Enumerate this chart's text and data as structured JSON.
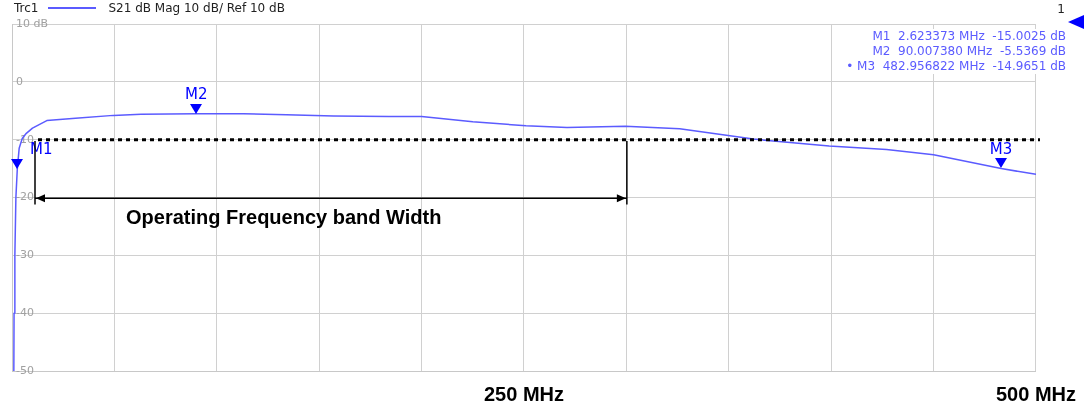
{
  "chart_data": {
    "type": "line",
    "legend_title": "Trc1",
    "legend": "top left",
    "x": [
      0.9,
      1.0,
      1.4,
      1.9,
      2.6,
      3.5,
      5,
      7,
      10,
      17,
      31,
      49.5,
      63,
      90,
      113,
      134,
      157,
      184,
      200,
      225,
      251,
      271,
      299.5,
      326,
      362,
      399,
      427,
      450,
      483,
      500
    ],
    "series": [
      {
        "name": "S21  dB Mag  10 dB/ Ref 10 dB",
        "color": "#5b5bff",
        "values": [
          -50,
          -40,
          -30,
          -20,
          -15.0,
          -11.5,
          -9.8,
          -8.9,
          -8.0,
          -6.7,
          -6.3,
          -5.8,
          -5.6,
          -5.5,
          -5.5,
          -5.7,
          -5.9,
          -6.0,
          -6.0,
          -6.9,
          -7.6,
          -7.9,
          -7.7,
          -8.1,
          -9.9,
          -11.1,
          -11.7,
          -12.6,
          -15.0,
          -16.0
        ]
      }
    ],
    "xlim": [
      0,
      500
    ],
    "xticks": [
      {
        "value": 0,
        "label": null
      },
      {
        "value": 50,
        "label": null
      },
      {
        "value": 100,
        "label": null
      },
      {
        "value": 150,
        "label": null
      },
      {
        "value": 200,
        "label": null
      },
      {
        "value": 250,
        "label": "250 MHz"
      },
      {
        "value": 300,
        "label": null
      },
      {
        "value": 350,
        "label": null
      },
      {
        "value": 400,
        "label": null
      },
      {
        "value": 450,
        "label": null
      },
      {
        "value": 500,
        "label": "500 MHz"
      }
    ],
    "ylim": [
      -50,
      10
    ],
    "yticks": [
      {
        "value": 10,
        "label": "10 dB"
      },
      0,
      -10,
      -20,
      -30,
      -40,
      -50
    ],
    "grid": true,
    "marker": "none",
    "line_style": "solid",
    "ref_lines": [
      {
        "axis": "y",
        "value": -10,
        "color": "#000000",
        "line_style": "dotted"
      }
    ],
    "annotations": [
      {
        "text": "M1",
        "x": 2.623373,
        "y": -15.0025
      },
      {
        "text": "M2",
        "x": 90.00738,
        "y": -5.5369
      },
      {
        "text": "M3",
        "x": 482.956822,
        "y": -14.9651
      },
      "1",
      "M1  2.623373 MHz  -15.0025 dB",
      "M2  90.007380 MHz  -5.5369 dB",
      "• M3  482.956822 MHz  -14.9651 dB",
      "Operating Frequency band Width"
    ]
  }
}
